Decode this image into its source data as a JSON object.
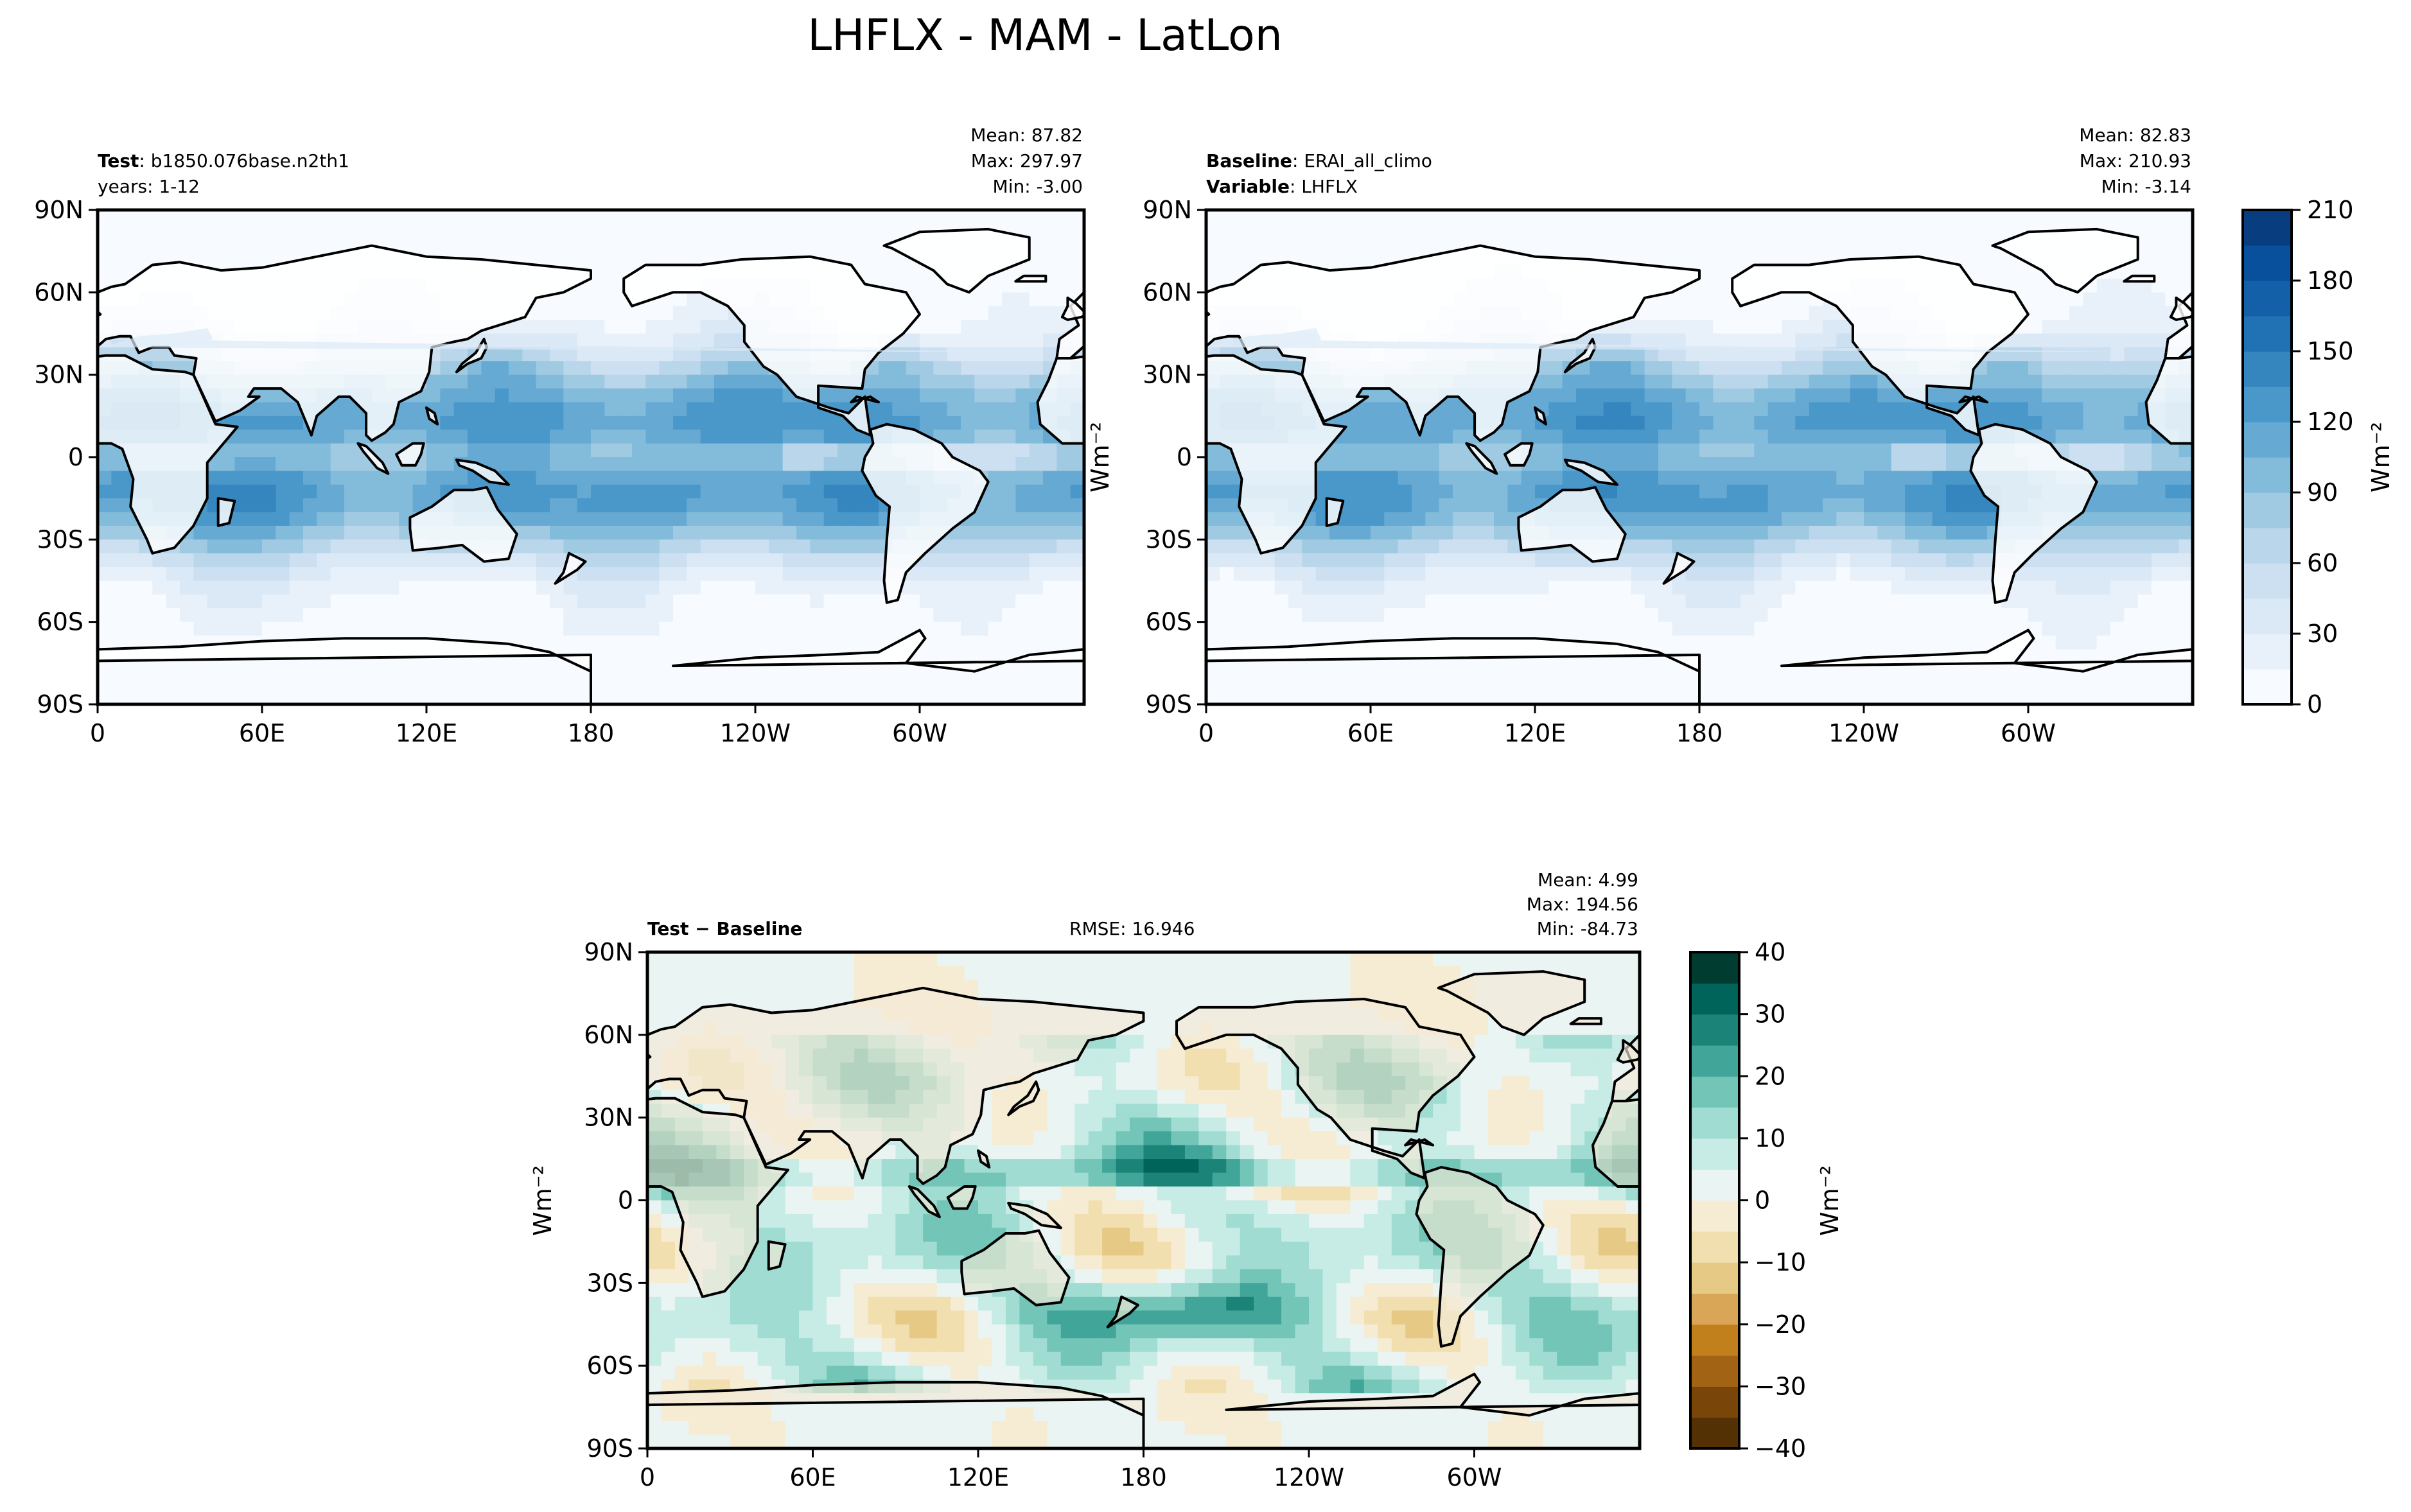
{
  "figure": {
    "title": "LHFLX - MAM - LatLon"
  },
  "colors": {
    "blues": [
      "#f7fbff",
      "#e8f1fa",
      "#dbe9f6",
      "#cde0f1",
      "#bad6eb",
      "#a0cae2",
      "#83bbdb",
      "#66aad4",
      "#4a98c9",
      "#3585bf",
      "#2171b5",
      "#1460a8",
      "#08509b",
      "#083e80",
      "#08306b"
    ],
    "diff": [
      "#543005",
      "#7a4509",
      "#a26314",
      "#c2801d",
      "#d8a656",
      "#e5c985",
      "#f1dfb0",
      "#f6ecd3",
      "#eaf4f2",
      "#c7ebe5",
      "#a0dcd2",
      "#72c5b7",
      "#41a599",
      "#1c8379",
      "#00645a",
      "#003c30"
    ],
    "land": "#ffffff",
    "coast": "#000000"
  },
  "chart_data": [
    {
      "type": "heatmap",
      "panel": "test",
      "label_bold_1": "Test",
      "label_text_1": ": b1850.076base.n2th1",
      "label_text_2": "years: 1-12",
      "stats": [
        "Mean: 87.82",
        "Max: 297.97",
        "Min: -3.00"
      ],
      "xticks": [
        "0",
        "60E",
        "120E",
        "180",
        "120W",
        "60W"
      ],
      "yticks": [
        "90N",
        "60N",
        "30N",
        "0",
        "30S",
        "60S",
        "90S"
      ],
      "xlim": [
        0,
        360
      ],
      "ylim": [
        -90,
        90
      ]
    },
    {
      "type": "heatmap",
      "panel": "baseline",
      "label_bold_1": "Baseline",
      "label_text_1": ": ERAI_all_climo",
      "label_bold_2": "Variable",
      "label_text_2": ": LHFLX",
      "stats": [
        "Mean: 82.83",
        "Max: 210.93",
        "Min: -3.14"
      ],
      "xticks": [
        "0",
        "60E",
        "120E",
        "180",
        "120W",
        "60W"
      ],
      "yticks": [
        "90N",
        "60N",
        "30N",
        "0",
        "30S",
        "60S",
        "90S"
      ],
      "ylabel_side": "Wm⁻²",
      "colorbar": {
        "ticks": [
          "210",
          "180",
          "150",
          "120",
          "90",
          "60",
          "30",
          "0"
        ],
        "range": [
          0,
          210
        ],
        "step": 15,
        "label": "Wm⁻²"
      },
      "xlim": [
        0,
        360
      ],
      "ylim": [
        -90,
        90
      ]
    },
    {
      "type": "heatmap",
      "panel": "difference",
      "label_bold": "Test − Baseline",
      "rmse": "RMSE: 16.946",
      "stats": [
        "Mean:  4.99",
        "Max: 194.56",
        "Min: -84.73"
      ],
      "xticks": [
        "0",
        "60E",
        "120E",
        "180",
        "120W",
        "60W"
      ],
      "yticks": [
        "90N",
        "60N",
        "30N",
        "0",
        "30S",
        "60S",
        "90S"
      ],
      "ylabel": "Wm⁻²",
      "colorbar": {
        "ticks": [
          "40",
          "30",
          "20",
          "10",
          "0",
          "−10",
          "−20",
          "−30",
          "−40"
        ],
        "range": [
          -40,
          40
        ],
        "step": 5,
        "label": "Wm⁻²"
      },
      "xlim": [
        0,
        360
      ],
      "ylim": [
        -90,
        90
      ]
    }
  ]
}
